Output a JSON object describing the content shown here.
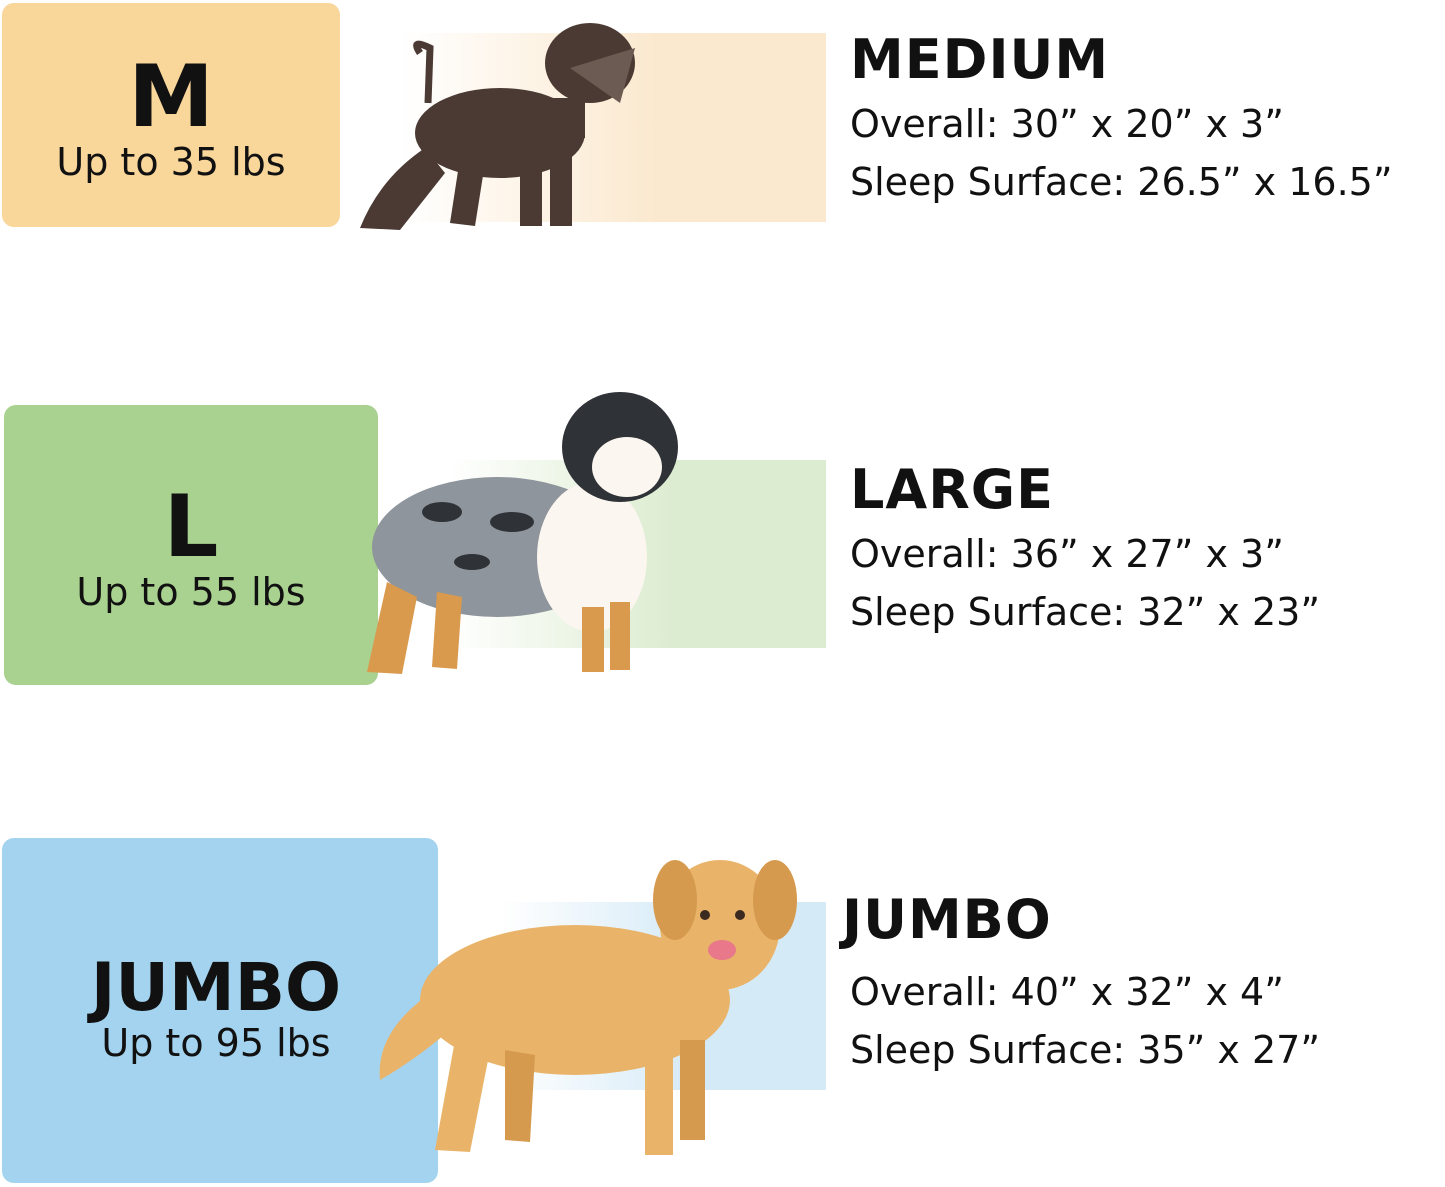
{
  "sizes": [
    {
      "letter": "M",
      "weight": "Up to 35 lbs",
      "name": "MEDIUM",
      "overall": "Overall: 30” x 20” x 3”",
      "sleep": "Sleep Surface: 26.5” x 16.5”",
      "color": "#f9d69a",
      "band_color": "#fbe9cf",
      "dog_color": "#4a3a33"
    },
    {
      "letter": "L",
      "weight": "Up to 55 lbs",
      "name": "LARGE",
      "overall": "Overall: 36” x 27” x 3”",
      "sleep": "Sleep Surface: 32” x 23”",
      "color": "#a9d18f",
      "band_color": "#dcecd0",
      "dog_color": "#8f959c"
    },
    {
      "letter": "JUMBO",
      "weight": "Up to 95 lbs",
      "name": "JUMBO",
      "overall": "Overall: 40” x 32” x 4”",
      "sleep": "Sleep Surface: 35” x 27”",
      "color": "#a3d3ef",
      "band_color": "#d5eaf7",
      "dog_color": "#e9b46a"
    }
  ]
}
